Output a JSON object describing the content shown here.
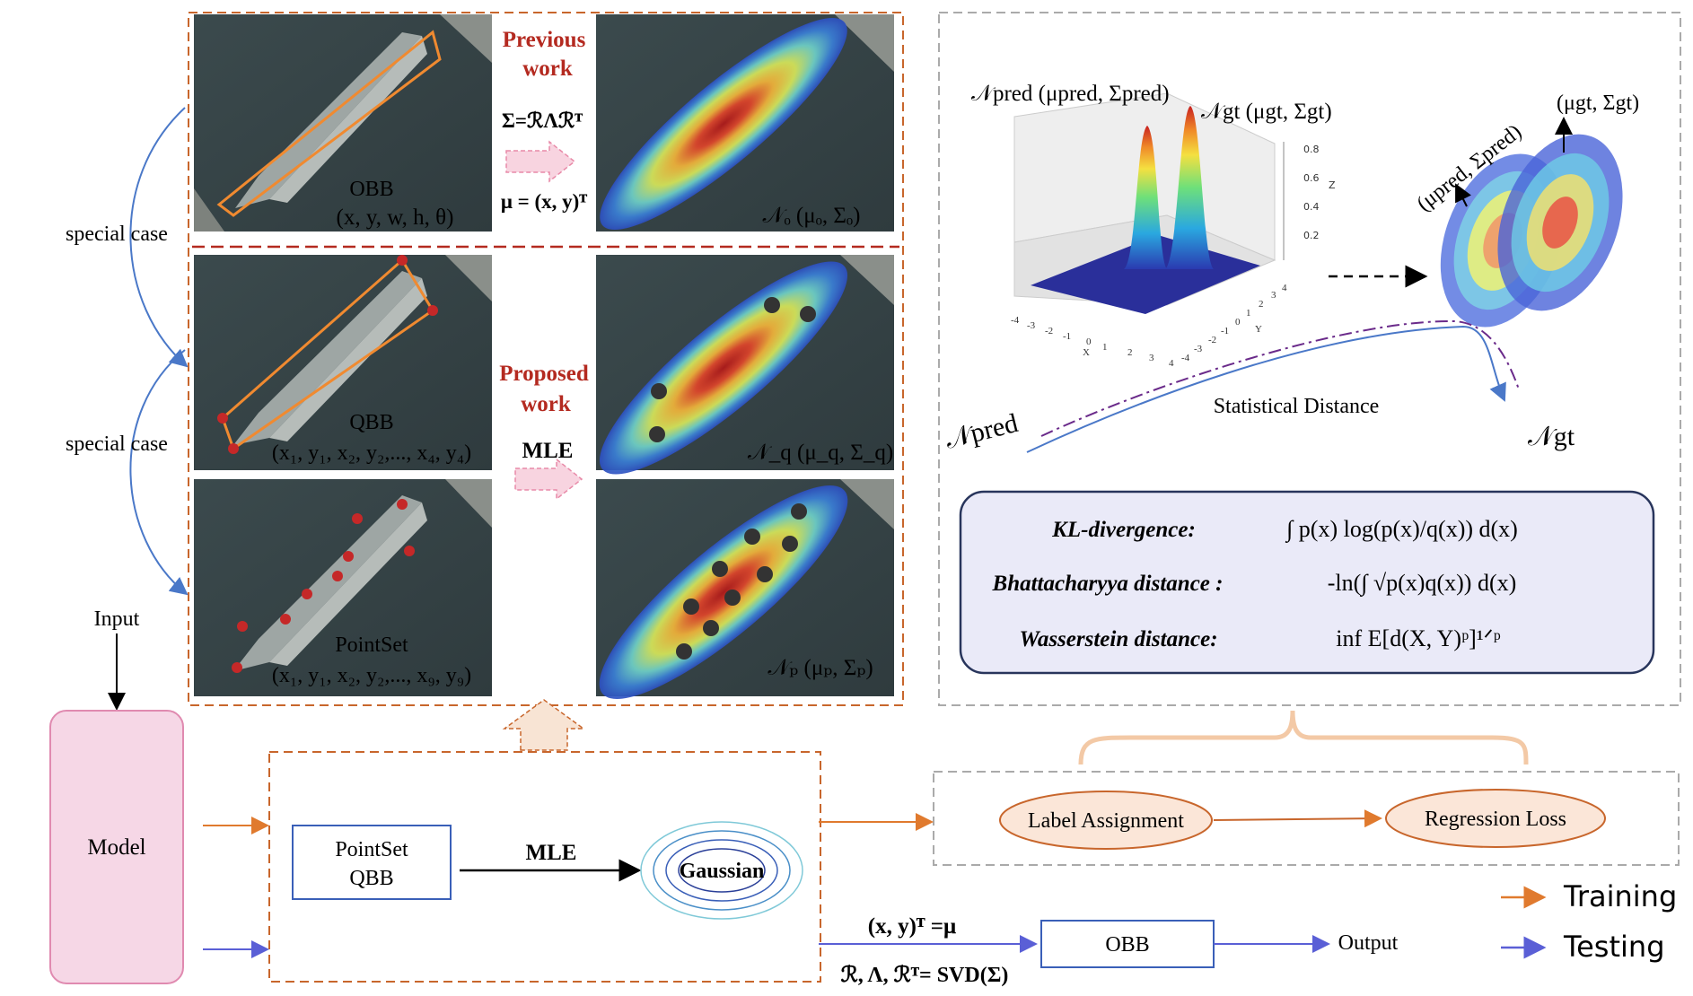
{
  "left": {
    "special_case_1": "special case",
    "special_case_2": "special case",
    "input_label": "Input",
    "model_label": "Model"
  },
  "panels": {
    "obb": {
      "title": "OBB",
      "params": "(x, y, w, h, θ)"
    },
    "qbb": {
      "title": "QBB",
      "params": "(x₁, y₁, x₂, y₂,..., x₄, y₄)"
    },
    "pointset": {
      "title": "PointSet",
      "params": "(x₁, y₁, x₂, y₂,..., x₉, y₉)"
    },
    "gauss_o": "𝒩ₒ (μₒ, Σₒ)",
    "gauss_q": "𝒩_q (μ_q, Σ_q)",
    "gauss_p": "𝒩ₚ (μₚ, Σₚ)"
  },
  "middle": {
    "previous_line1": "Previous",
    "previous_line2": "work",
    "sigma_formula": "Σ=ℛΛℛᵀ",
    "mu_formula": "μ = (x, y)ᵀ",
    "proposed_line1": "Proposed",
    "proposed_line2": "work",
    "mle": "MLE"
  },
  "pipeline": {
    "pointset_qbb_line1": "PointSet",
    "pointset_qbb_line2": "QBB",
    "mle": "MLE",
    "gaussian": "Gaussian",
    "mu_eq": "(x, y)ᵀ =μ",
    "svd_eq": "ℛ, Λ, ℛᵀ= SVD(Σ)",
    "obb": "OBB",
    "output": "Output",
    "label_assignment": "Label Assignment",
    "regression_loss": "Regression Loss"
  },
  "legend": {
    "training": "Training",
    "testing": "Testing",
    "training_color": "#e07a2e",
    "testing_color": "#5a5fd6"
  },
  "right": {
    "n_pred_title": "𝒩pred (μpred, Σpred)",
    "n_gt_title": "𝒩gt (μgt, Σgt)",
    "mu_gt": "(μgt, Σgt)",
    "mu_pred": "(μpred, Σpred)",
    "n_pred_low": "𝒩pred",
    "n_gt_low": "𝒩gt",
    "statistical_distance": "Statistical Distance",
    "z_ticks": [
      "0.8",
      "0.6",
      "0.4",
      "0.2"
    ],
    "z_label": "Z",
    "x_ticks": [
      "-4",
      "-3",
      "-2",
      "-1",
      "0",
      "1",
      "2",
      "3",
      "4"
    ],
    "x_label": "X",
    "y_ticks": [
      "4",
      "3",
      "2",
      "1",
      "0",
      "-1",
      "-2",
      "-3",
      "-4"
    ],
    "y_label": "Y",
    "kl_name": "KL-divergence:",
    "kl_formula": "∫ p(x) log(p(x)/q(x)) d(x)",
    "bh_name": "Bhattacharyya distance :",
    "bh_formula": "-ln(∫ √p(x)q(x)) d(x)",
    "ws_name": "Wasserstein distance:",
    "ws_formula": "inf E[d(X, Y)ᵖ]¹ᐟᵖ"
  }
}
